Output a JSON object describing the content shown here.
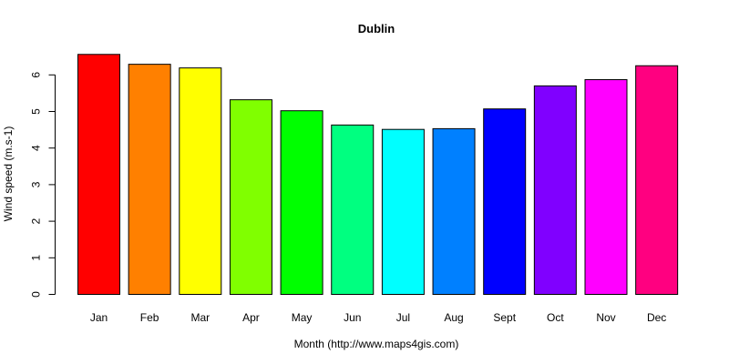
{
  "chart_data": {
    "type": "bar",
    "title": "Dublin",
    "xlabel": "Month (http://www.maps4gis.com)",
    "ylabel": "Wind speed (m.s-1)",
    "ylim": [
      0,
      6.6
    ],
    "yticks": [
      0,
      1,
      2,
      3,
      4,
      5,
      6
    ],
    "categories": [
      "Jan",
      "Feb",
      "Mar",
      "Apr",
      "May",
      "Jun",
      "Jul",
      "Aug",
      "Sept",
      "Oct",
      "Nov",
      "Dec"
    ],
    "values": [
      6.56,
      6.29,
      6.19,
      5.32,
      5.02,
      4.63,
      4.51,
      4.53,
      5.07,
      5.7,
      5.87,
      6.25
    ],
    "colors": [
      "#FF0000",
      "#FF8000",
      "#FFFF00",
      "#80FF00",
      "#00FF00",
      "#00FF80",
      "#00FFFF",
      "#0080FF",
      "#0000FF",
      "#8000FF",
      "#FF00FF",
      "#FF0080"
    ],
    "grid": false,
    "legend": "none"
  }
}
